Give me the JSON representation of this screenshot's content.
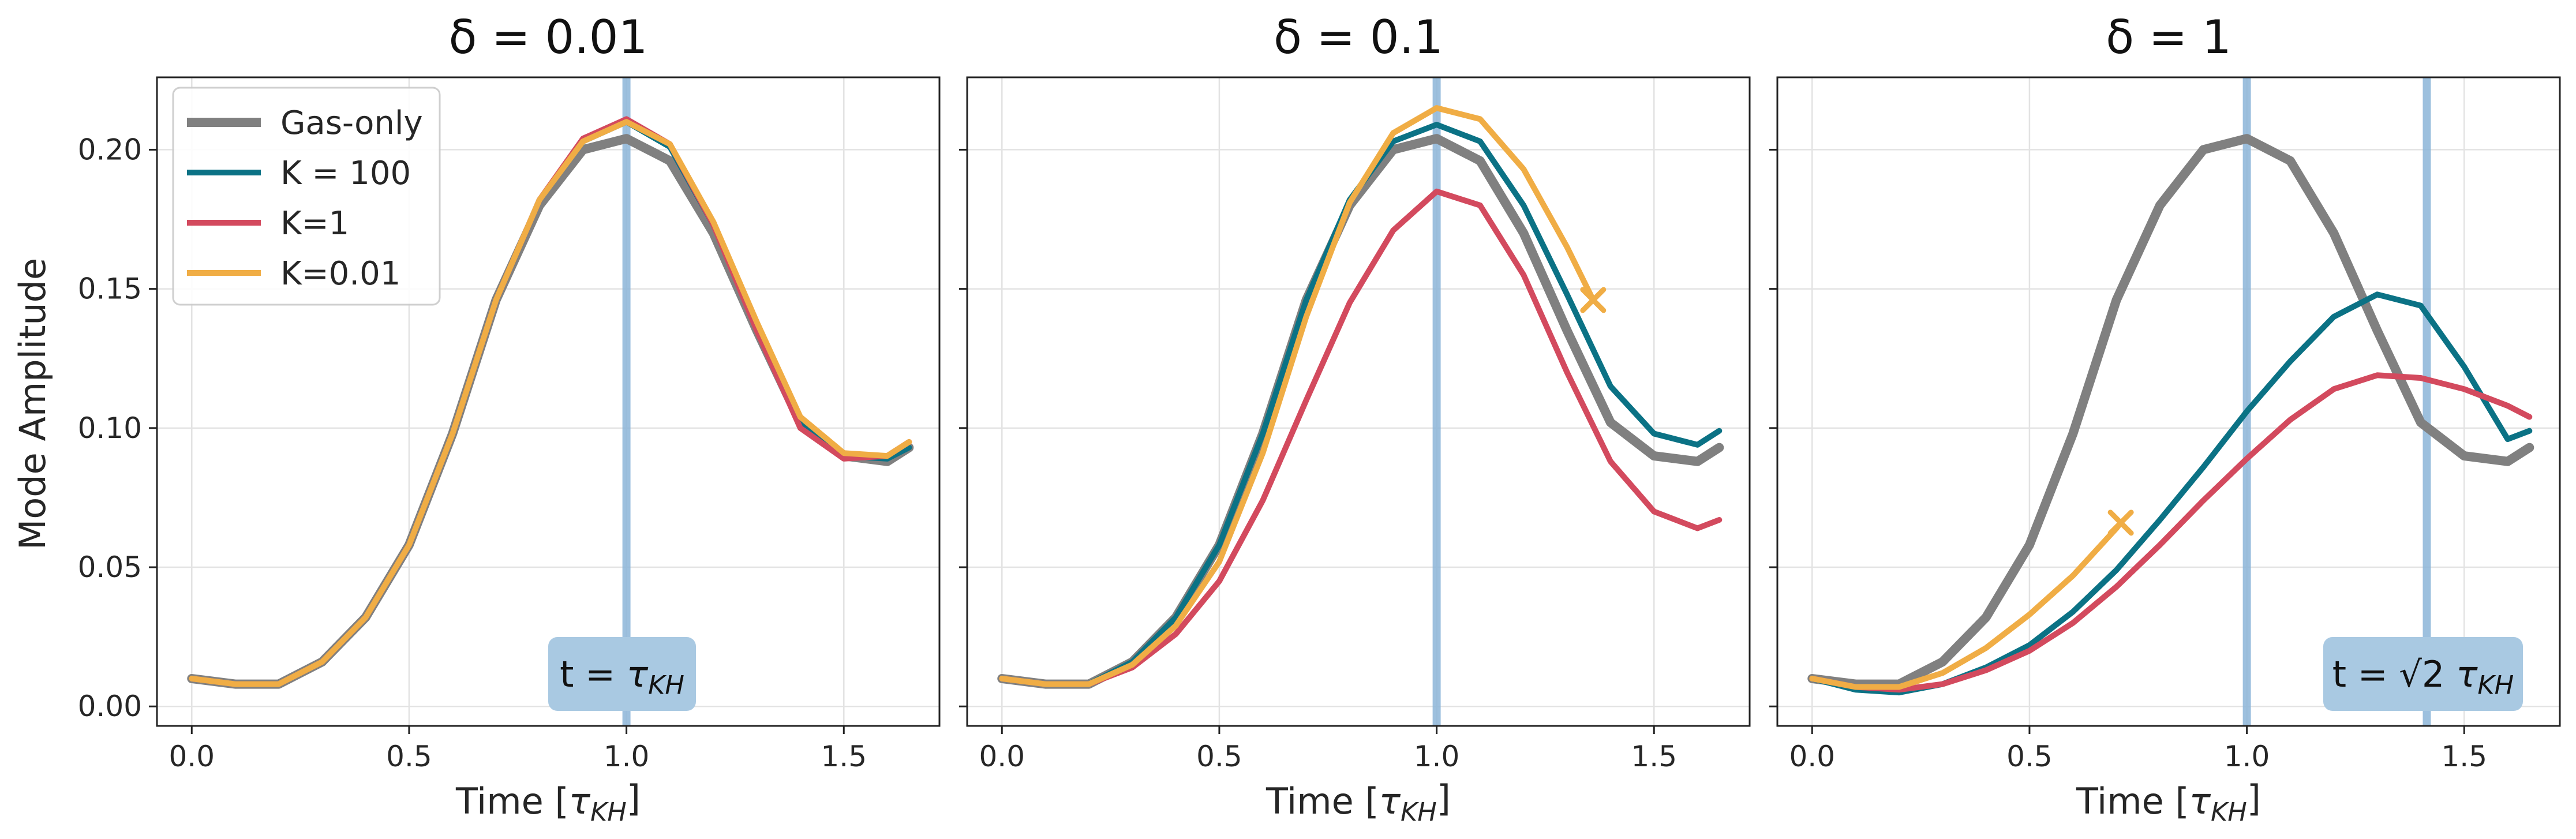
{
  "chart_data": [
    {
      "type": "line",
      "title": "δ = 0.01",
      "xlabel": "Time [τ_KH]",
      "ylabel": "Mode Amplitude",
      "xlim": [
        -0.08,
        1.72
      ],
      "ylim": [
        -0.007,
        0.226
      ],
      "xticks": [
        "0.0",
        "0.5",
        "1.0",
        "1.5"
      ],
      "xtick_values": [
        0,
        0.5,
        1.0,
        1.5
      ],
      "yticks": [
        "0.00",
        "0.05",
        "0.10",
        "0.15",
        "0.20"
      ],
      "ytick_values": [
        0,
        0.05,
        0.1,
        0.15,
        0.2
      ],
      "grid": true,
      "legend": "top-left",
      "vlines": [
        1.0
      ],
      "annotation": "t = τKH",
      "series": [
        {
          "name": "Gas-only",
          "color": "#808080",
          "width": 16,
          "x": [
            0,
            0.1,
            0.2,
            0.3,
            0.4,
            0.5,
            0.6,
            0.7,
            0.8,
            0.9,
            1.0,
            1.1,
            1.2,
            1.3,
            1.4,
            1.5,
            1.6,
            1.65
          ],
          "values": [
            0.01,
            0.008,
            0.008,
            0.016,
            0.032,
            0.058,
            0.098,
            0.146,
            0.18,
            0.2,
            0.204,
            0.196,
            0.17,
            0.135,
            0.102,
            0.09,
            0.088,
            0.093
          ]
        },
        {
          "name": "K = 100",
          "color": "#0b7285",
          "width": 10,
          "x": [
            0,
            0.1,
            0.2,
            0.3,
            0.4,
            0.5,
            0.6,
            0.7,
            0.8,
            0.9,
            1.0,
            1.1,
            1.2,
            1.3,
            1.4,
            1.5,
            1.6,
            1.65
          ],
          "values": [
            0.01,
            0.008,
            0.008,
            0.016,
            0.032,
            0.058,
            0.098,
            0.146,
            0.182,
            0.203,
            0.21,
            0.201,
            0.173,
            0.136,
            0.102,
            0.09,
            0.089,
            0.093
          ]
        },
        {
          "name": "K=1",
          "color": "#d34a5e",
          "width": 10,
          "x": [
            0,
            0.1,
            0.2,
            0.3,
            0.4,
            0.5,
            0.6,
            0.7,
            0.8,
            0.9,
            1.0,
            1.1,
            1.2,
            1.3,
            1.4,
            1.5,
            1.6,
            1.65
          ],
          "values": [
            0.01,
            0.008,
            0.008,
            0.016,
            0.032,
            0.058,
            0.098,
            0.146,
            0.182,
            0.204,
            0.211,
            0.202,
            0.173,
            0.135,
            0.1,
            0.089,
            0.09,
            0.095
          ]
        },
        {
          "name": "K=0.01",
          "color": "#f0ad45",
          "width": 10,
          "x": [
            0,
            0.1,
            0.2,
            0.3,
            0.4,
            0.5,
            0.6,
            0.7,
            0.8,
            0.9,
            1.0,
            1.1,
            1.2,
            1.3,
            1.4,
            1.5,
            1.6,
            1.65
          ],
          "values": [
            0.01,
            0.008,
            0.008,
            0.016,
            0.032,
            0.058,
            0.098,
            0.146,
            0.182,
            0.203,
            0.21,
            0.202,
            0.174,
            0.138,
            0.104,
            0.091,
            0.09,
            0.095
          ]
        }
      ],
      "markers": []
    },
    {
      "type": "line",
      "title": "δ = 0.1",
      "xlabel": "Time [τ_KH]",
      "ylabel": "",
      "xlim": [
        -0.08,
        1.72
      ],
      "ylim": [
        -0.007,
        0.226
      ],
      "xticks": [
        "0.0",
        "0.5",
        "1.0",
        "1.5"
      ],
      "xtick_values": [
        0,
        0.5,
        1.0,
        1.5
      ],
      "yticks": [],
      "ytick_values": [
        0,
        0.05,
        0.1,
        0.15,
        0.2
      ],
      "grid": true,
      "legend": "",
      "vlines": [
        1.0
      ],
      "annotation": "",
      "series": [
        {
          "name": "Gas-only",
          "color": "#808080",
          "width": 16,
          "x": [
            0,
            0.1,
            0.2,
            0.3,
            0.4,
            0.5,
            0.6,
            0.7,
            0.8,
            0.9,
            1.0,
            1.1,
            1.2,
            1.3,
            1.4,
            1.5,
            1.6,
            1.65
          ],
          "values": [
            0.01,
            0.008,
            0.008,
            0.016,
            0.032,
            0.058,
            0.098,
            0.146,
            0.18,
            0.2,
            0.204,
            0.196,
            0.17,
            0.135,
            0.102,
            0.09,
            0.088,
            0.093
          ]
        },
        {
          "name": "K = 100",
          "color": "#0b7285",
          "width": 10,
          "x": [
            0,
            0.1,
            0.2,
            0.3,
            0.4,
            0.5,
            0.6,
            0.7,
            0.8,
            0.9,
            1.0,
            1.1,
            1.2,
            1.3,
            1.4,
            1.5,
            1.6,
            1.65
          ],
          "values": [
            0.01,
            0.008,
            0.008,
            0.016,
            0.032,
            0.058,
            0.098,
            0.146,
            0.182,
            0.203,
            0.209,
            0.203,
            0.18,
            0.148,
            0.115,
            0.098,
            0.094,
            0.099
          ]
        },
        {
          "name": "K=1",
          "color": "#d34a5e",
          "width": 10,
          "x": [
            0,
            0.1,
            0.2,
            0.3,
            0.4,
            0.5,
            0.6,
            0.7,
            0.8,
            0.9,
            1.0,
            1.1,
            1.2,
            1.3,
            1.4,
            1.5,
            1.6,
            1.65
          ],
          "values": [
            0.01,
            0.008,
            0.008,
            0.014,
            0.026,
            0.045,
            0.074,
            0.11,
            0.145,
            0.171,
            0.185,
            0.18,
            0.155,
            0.12,
            0.088,
            0.07,
            0.064,
            0.067
          ]
        },
        {
          "name": "K=0.01",
          "color": "#f0ad45",
          "width": 10,
          "x": [
            0,
            0.1,
            0.2,
            0.3,
            0.4,
            0.5,
            0.6,
            0.7,
            0.8,
            0.9,
            1.0,
            1.1,
            1.2,
            1.3,
            1.36
          ],
          "values": [
            0.01,
            0.008,
            0.008,
            0.015,
            0.029,
            0.052,
            0.091,
            0.14,
            0.181,
            0.206,
            0.215,
            0.211,
            0.193,
            0.165,
            0.146
          ]
        }
      ],
      "markers": [
        {
          "series": "K=0.01",
          "x": 1.36,
          "y": 0.146,
          "symbol": "x"
        }
      ]
    },
    {
      "type": "line",
      "title": "δ = 1",
      "xlabel": "Time [τ_KH]",
      "ylabel": "",
      "xlim": [
        -0.08,
        1.72
      ],
      "ylim": [
        -0.007,
        0.226
      ],
      "xticks": [
        "0.0",
        "0.5",
        "1.0",
        "1.5"
      ],
      "xtick_values": [
        0,
        0.5,
        1.0,
        1.5
      ],
      "yticks": [],
      "ytick_values": [
        0,
        0.05,
        0.1,
        0.15,
        0.2
      ],
      "grid": true,
      "legend": "",
      "vlines": [
        1.0,
        1.414
      ],
      "annotation": "t = √2 τKH",
      "series": [
        {
          "name": "Gas-only",
          "color": "#808080",
          "width": 16,
          "x": [
            0,
            0.1,
            0.2,
            0.3,
            0.4,
            0.5,
            0.6,
            0.7,
            0.8,
            0.9,
            1.0,
            1.1,
            1.2,
            1.3,
            1.4,
            1.5,
            1.6,
            1.65
          ],
          "values": [
            0.01,
            0.008,
            0.008,
            0.016,
            0.032,
            0.058,
            0.098,
            0.146,
            0.18,
            0.2,
            0.204,
            0.196,
            0.17,
            0.135,
            0.102,
            0.09,
            0.088,
            0.093
          ]
        },
        {
          "name": "K = 100",
          "color": "#0b7285",
          "width": 10,
          "x": [
            0,
            0.1,
            0.2,
            0.3,
            0.4,
            0.5,
            0.6,
            0.7,
            0.8,
            0.9,
            1.0,
            1.1,
            1.2,
            1.3,
            1.4,
            1.5,
            1.6,
            1.65
          ],
          "values": [
            0.01,
            0.006,
            0.005,
            0.008,
            0.014,
            0.022,
            0.034,
            0.049,
            0.067,
            0.086,
            0.106,
            0.124,
            0.14,
            0.148,
            0.144,
            0.122,
            0.096,
            0.099
          ]
        },
        {
          "name": "K=1",
          "color": "#d34a5e",
          "width": 10,
          "x": [
            0,
            0.1,
            0.2,
            0.3,
            0.4,
            0.5,
            0.6,
            0.7,
            0.8,
            0.9,
            1.0,
            1.1,
            1.2,
            1.3,
            1.4,
            1.5,
            1.6,
            1.65
          ],
          "values": [
            0.01,
            0.007,
            0.006,
            0.008,
            0.013,
            0.02,
            0.03,
            0.043,
            0.058,
            0.074,
            0.089,
            0.103,
            0.114,
            0.119,
            0.118,
            0.114,
            0.108,
            0.104
          ]
        },
        {
          "name": "K=0.01",
          "color": "#f0ad45",
          "width": 10,
          "x": [
            0,
            0.1,
            0.2,
            0.3,
            0.4,
            0.5,
            0.6,
            0.7,
            0.71
          ],
          "values": [
            0.01,
            0.007,
            0.007,
            0.012,
            0.021,
            0.033,
            0.047,
            0.064,
            0.066
          ]
        }
      ],
      "markers": [
        {
          "series": "K=0.01",
          "x": 0.71,
          "y": 0.066,
          "symbol": "x"
        }
      ]
    }
  ],
  "legend_items": [
    "Gas-only",
    "K = 100",
    "K=1",
    "K=0.01"
  ],
  "colors": {
    "gas_only": "#808080",
    "k100": "#0b7285",
    "k1": "#d34a5e",
    "k001": "#f0ad45",
    "vline": "#8db6d9",
    "annotation_box": "#a9c9e2"
  }
}
